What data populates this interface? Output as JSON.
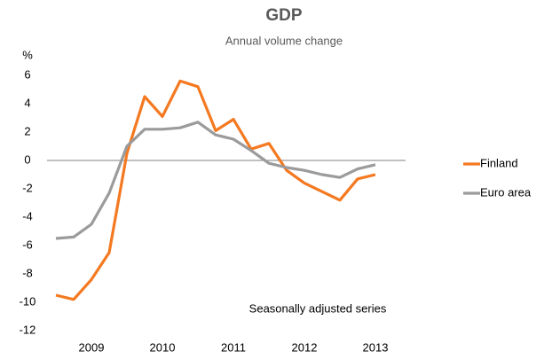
{
  "chart_data": {
    "type": "line",
    "title": "GDP",
    "subtitle": "Annual volume change",
    "y_label": "%",
    "annotation": "Seasonally adjusted series",
    "categories": [
      null,
      null,
      "2009",
      null,
      null,
      null,
      "2010",
      null,
      null,
      null,
      "2011",
      null,
      null,
      null,
      "2012",
      null,
      null,
      null,
      "2013"
    ],
    "series": [
      {
        "name": "Finland",
        "color": "#f47920",
        "values": [
          -9.5,
          -9.8,
          -8.4,
          -6.5,
          0.5,
          4.5,
          3.1,
          5.6,
          5.2,
          2.1,
          2.9,
          0.8,
          1.2,
          -0.7,
          -1.6,
          -2.2,
          -2.8,
          -1.3,
          -1.0
        ]
      },
      {
        "name": "Euro area",
        "color": "#9b9b9b",
        "values": [
          -5.5,
          -5.4,
          -4.5,
          -2.3,
          1.0,
          2.2,
          2.2,
          2.3,
          2.7,
          1.8,
          1.5,
          0.7,
          -0.2,
          -0.5,
          -0.7,
          -1.0,
          -1.2,
          -0.6,
          -0.3
        ]
      }
    ],
    "ylim": [
      -12,
      6
    ],
    "yticks": [
      -12,
      -10,
      -8,
      -6,
      -4,
      -2,
      0,
      2,
      4,
      6
    ],
    "grid": false,
    "legend": "right"
  }
}
